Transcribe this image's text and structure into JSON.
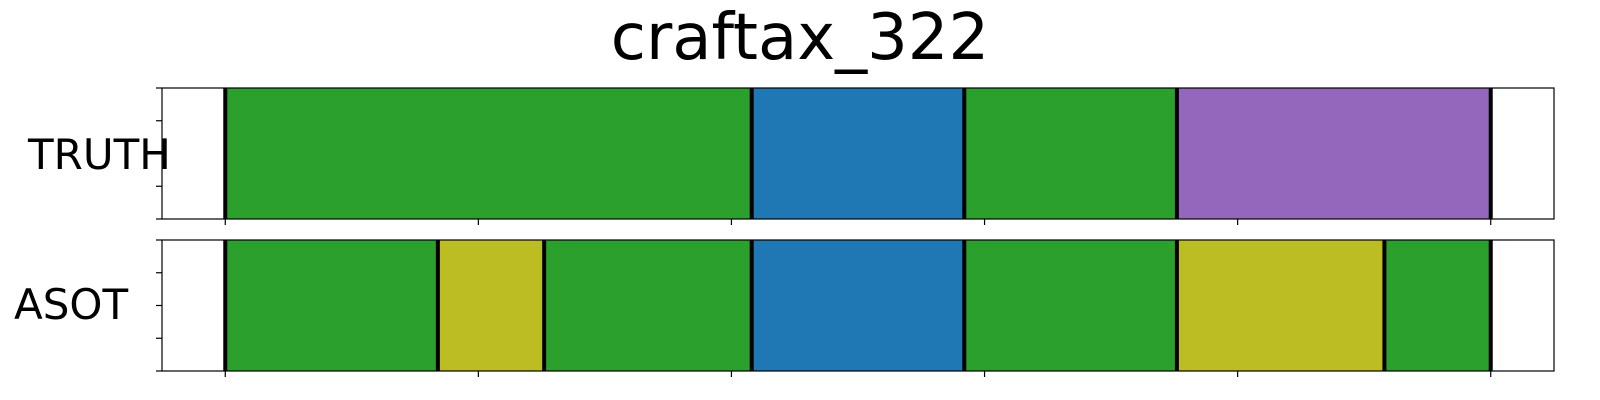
{
  "chart_data": {
    "type": "segmentation",
    "title": "craftax_322",
    "xlim": [
      -1.25,
      26.25
    ],
    "colors": {
      "green": "#2ca02c",
      "blue": "#1f77b4",
      "purple": "#9467bd",
      "olive": "#bcbd22"
    },
    "rows": [
      {
        "name": "TRUTH",
        "segments": [
          {
            "start": 0,
            "end": 10.4,
            "color": "#2ca02c"
          },
          {
            "start": 10.4,
            "end": 14.6,
            "color": "#1f77b4"
          },
          {
            "start": 14.6,
            "end": 18.8,
            "color": "#2ca02c"
          },
          {
            "start": 18.8,
            "end": 25.0,
            "color": "#9467bd"
          }
        ]
      },
      {
        "name": "ASOT",
        "segments": [
          {
            "start": 0,
            "end": 4.2,
            "color": "#2ca02c"
          },
          {
            "start": 4.2,
            "end": 6.3,
            "color": "#bcbd22"
          },
          {
            "start": 6.3,
            "end": 10.4,
            "color": "#2ca02c"
          },
          {
            "start": 10.4,
            "end": 14.6,
            "color": "#1f77b4"
          },
          {
            "start": 14.6,
            "end": 18.8,
            "color": "#2ca02c"
          },
          {
            "start": 18.8,
            "end": 22.9,
            "color": "#bcbd22"
          },
          {
            "start": 22.9,
            "end": 25.0,
            "color": "#2ca02c"
          }
        ]
      }
    ],
    "xticks": [
      0,
      5,
      10,
      15,
      20,
      25
    ],
    "yticks_per_row": 5,
    "grid": false,
    "legend": "none"
  }
}
